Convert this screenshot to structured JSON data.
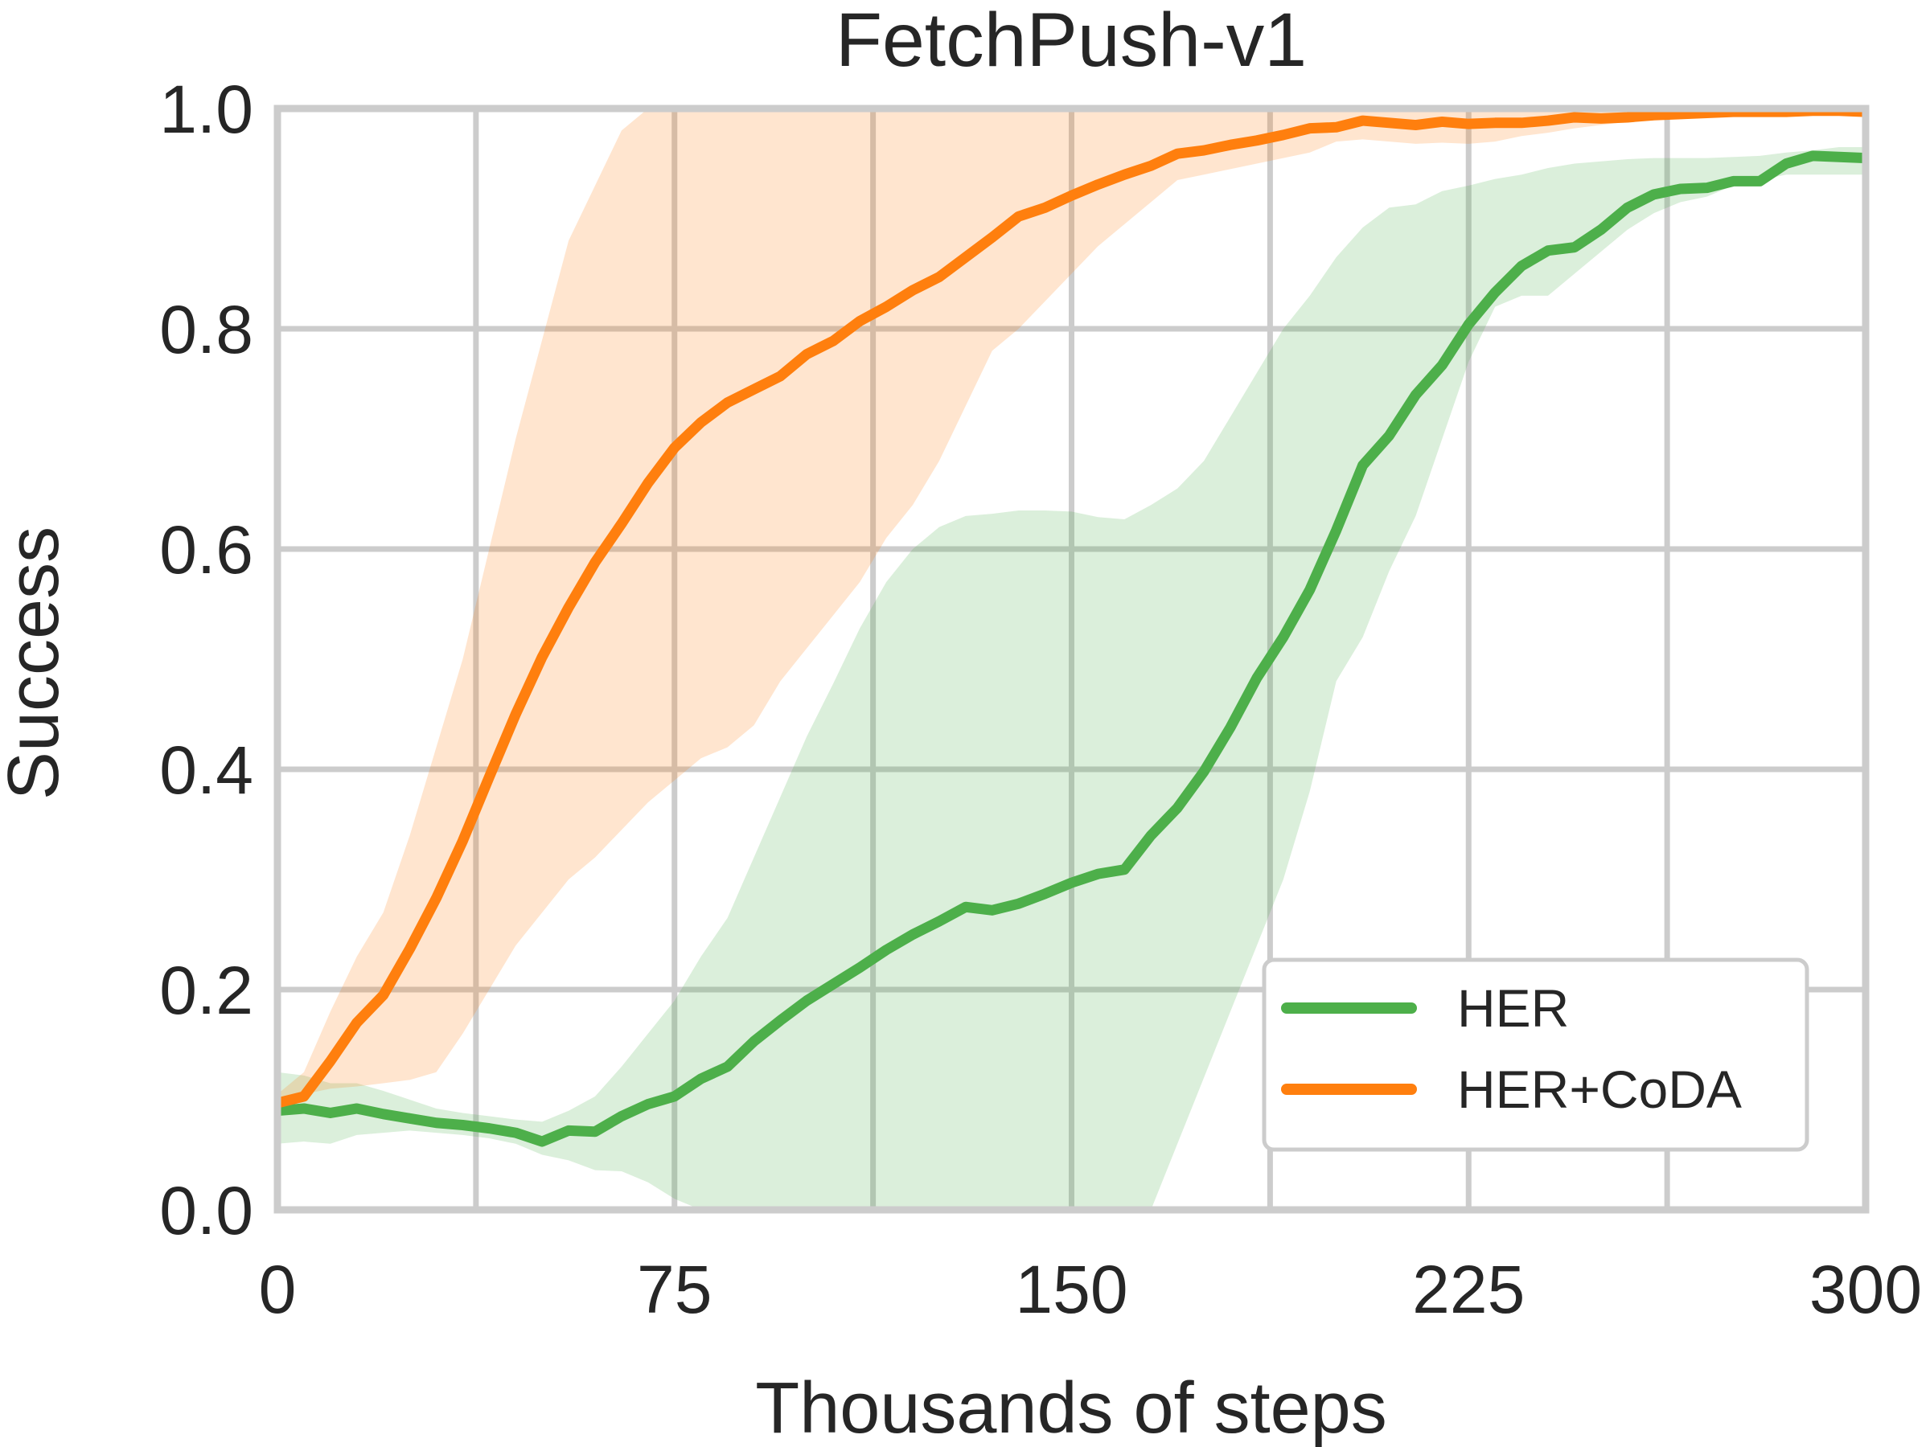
{
  "chart_data": {
    "type": "line",
    "title": "FetchPush-v1",
    "xlabel": "Thousands of steps",
    "ylabel": "Success",
    "xlim": [
      0,
      300
    ],
    "ylim": [
      0,
      1
    ],
    "xticks": [
      "0",
      "75",
      "150",
      "225",
      "300"
    ],
    "xtick_values": [
      0,
      75,
      150,
      225,
      300
    ],
    "yticks": [
      "0.0",
      "0.2",
      "0.4",
      "0.6",
      "0.8",
      "1.0"
    ],
    "ytick_values": [
      0,
      0.2,
      0.4,
      0.6,
      0.8,
      1.0
    ],
    "grid": true,
    "legend_position": "bottom-right",
    "x": [
      0,
      5,
      10,
      15,
      20,
      25,
      30,
      35,
      40,
      45,
      50,
      55,
      60,
      65,
      70,
      75,
      80,
      85,
      90,
      95,
      100,
      105,
      110,
      115,
      120,
      125,
      130,
      135,
      140,
      145,
      150,
      155,
      160,
      165,
      170,
      175,
      180,
      185,
      190,
      195,
      200,
      205,
      210,
      215,
      220,
      225,
      230,
      235,
      240,
      245,
      250,
      255,
      260,
      265,
      270,
      275,
      280,
      285,
      290,
      295,
      300
    ],
    "series": [
      {
        "name": "HER",
        "color": "#4daf4a",
        "band_color": "#4daf4a",
        "values": [
          0.09,
          0.092,
          0.088,
          0.092,
          0.087,
          0.083,
          0.079,
          0.077,
          0.074,
          0.07,
          0.062,
          0.072,
          0.071,
          0.085,
          0.096,
          0.103,
          0.119,
          0.13,
          0.153,
          0.172,
          0.19,
          0.205,
          0.22,
          0.236,
          0.25,
          0.262,
          0.275,
          0.272,
          0.278,
          0.287,
          0.297,
          0.305,
          0.309,
          0.34,
          0.365,
          0.398,
          0.438,
          0.483,
          0.52,
          0.563,
          0.617,
          0.676,
          0.703,
          0.74,
          0.767,
          0.804,
          0.833,
          0.857,
          0.871,
          0.874,
          0.89,
          0.91,
          0.922,
          0.927,
          0.928,
          0.934,
          0.934,
          0.95,
          0.957,
          0.956,
          0.955
        ],
        "lower": [
          0.06,
          0.062,
          0.06,
          0.068,
          0.07,
          0.072,
          0.07,
          0.068,
          0.065,
          0.06,
          0.05,
          0.045,
          0.036,
          0.035,
          0.025,
          0.01,
          0.0,
          0.0,
          0.0,
          0.0,
          0.0,
          0.0,
          0.0,
          0.0,
          0.0,
          0.0,
          0.0,
          0.0,
          0.0,
          0.0,
          0.0,
          0.0,
          0.0,
          0.0,
          0.06,
          0.12,
          0.18,
          0.24,
          0.3,
          0.38,
          0.48,
          0.52,
          0.58,
          0.63,
          0.7,
          0.77,
          0.82,
          0.83,
          0.83,
          0.85,
          0.87,
          0.89,
          0.905,
          0.915,
          0.92,
          0.93,
          0.935,
          0.94,
          0.94,
          0.94,
          0.94
        ],
        "upper": [
          0.125,
          0.122,
          0.115,
          0.115,
          0.108,
          0.1,
          0.092,
          0.088,
          0.085,
          0.082,
          0.08,
          0.09,
          0.103,
          0.13,
          0.16,
          0.19,
          0.23,
          0.265,
          0.32,
          0.375,
          0.43,
          0.478,
          0.528,
          0.57,
          0.6,
          0.62,
          0.63,
          0.632,
          0.635,
          0.635,
          0.634,
          0.629,
          0.627,
          0.64,
          0.655,
          0.68,
          0.72,
          0.76,
          0.8,
          0.83,
          0.865,
          0.892,
          0.91,
          0.913,
          0.925,
          0.93,
          0.936,
          0.94,
          0.946,
          0.95,
          0.952,
          0.954,
          0.955,
          0.955,
          0.955,
          0.956,
          0.957,
          0.96,
          0.962,
          0.965,
          0.965
        ]
      },
      {
        "name": "HER+CoDA",
        "color": "#ff7f0e",
        "band_color": "#ff7f0e",
        "values": [
          0.097,
          0.103,
          0.135,
          0.17,
          0.195,
          0.237,
          0.283,
          0.335,
          0.393,
          0.45,
          0.502,
          0.547,
          0.588,
          0.623,
          0.66,
          0.692,
          0.715,
          0.733,
          0.745,
          0.757,
          0.777,
          0.789,
          0.807,
          0.82,
          0.835,
          0.847,
          0.865,
          0.883,
          0.902,
          0.91,
          0.921,
          0.931,
          0.94,
          0.948,
          0.959,
          0.962,
          0.967,
          0.971,
          0.976,
          0.982,
          0.983,
          0.989,
          0.987,
          0.985,
          0.988,
          0.986,
          0.987,
          0.987,
          0.989,
          0.992,
          0.991,
          0.992,
          0.994,
          0.995,
          0.996,
          0.997,
          0.997,
          0.997,
          0.998,
          0.998,
          0.997
        ],
        "lower": [
          0.1,
          0.105,
          0.11,
          0.112,
          0.115,
          0.118,
          0.125,
          0.16,
          0.2,
          0.24,
          0.27,
          0.3,
          0.32,
          0.345,
          0.37,
          0.39,
          0.41,
          0.42,
          0.44,
          0.48,
          0.51,
          0.54,
          0.57,
          0.61,
          0.64,
          0.68,
          0.73,
          0.78,
          0.8,
          0.825,
          0.85,
          0.875,
          0.895,
          0.915,
          0.935,
          0.94,
          0.945,
          0.95,
          0.955,
          0.96,
          0.97,
          0.972,
          0.97,
          0.968,
          0.969,
          0.968,
          0.97,
          0.975,
          0.978,
          0.982,
          0.985,
          0.988,
          0.99,
          0.992,
          0.994,
          0.995,
          0.995,
          0.996,
          0.996,
          0.996,
          0.996
        ],
        "upper": [
          0.105,
          0.125,
          0.18,
          0.23,
          0.27,
          0.34,
          0.42,
          0.5,
          0.6,
          0.7,
          0.79,
          0.88,
          0.93,
          0.98,
          1.0,
          1.0,
          1.0,
          1.0,
          1.0,
          1.0,
          1.0,
          1.0,
          1.0,
          1.0,
          1.0,
          1.0,
          1.0,
          1.0,
          1.0,
          1.0,
          1.0,
          1.0,
          1.0,
          1.0,
          1.0,
          1.0,
          1.0,
          1.0,
          1.0,
          1.0,
          1.0,
          1.0,
          1.0,
          1.0,
          1.0,
          1.0,
          1.0,
          1.0,
          1.0,
          1.0,
          1.0,
          1.0,
          1.0,
          1.0,
          1.0,
          1.0,
          1.0,
          1.0,
          1.0,
          1.0,
          1.0
        ]
      }
    ]
  }
}
